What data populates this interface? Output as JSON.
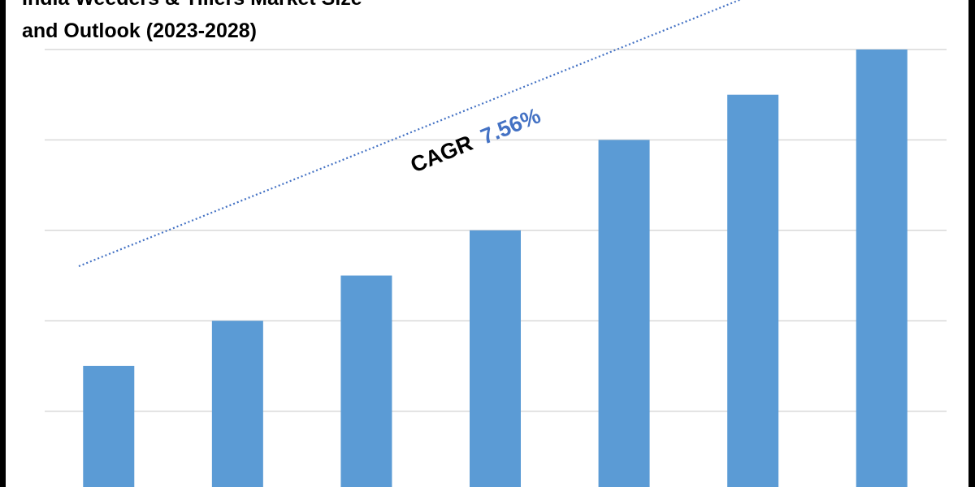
{
  "chart_data": {
    "type": "bar",
    "title_lines": [
      "India Weeders & Tillers Market Size",
      "and Outlook (2023-2028)"
    ],
    "categories": [
      "",
      "",
      "",
      "",
      "",
      "",
      ""
    ],
    "values": [
      1.5,
      2,
      2.5,
      3,
      4,
      4.5,
      5
    ],
    "ylim": [
      0,
      5
    ],
    "grid": true,
    "xlabel": "",
    "ylabel": "",
    "bar_color": "#5B9BD5",
    "trend_color": "#4472C4",
    "annotation": {
      "label": "CAGR",
      "value": "7.56%"
    }
  }
}
